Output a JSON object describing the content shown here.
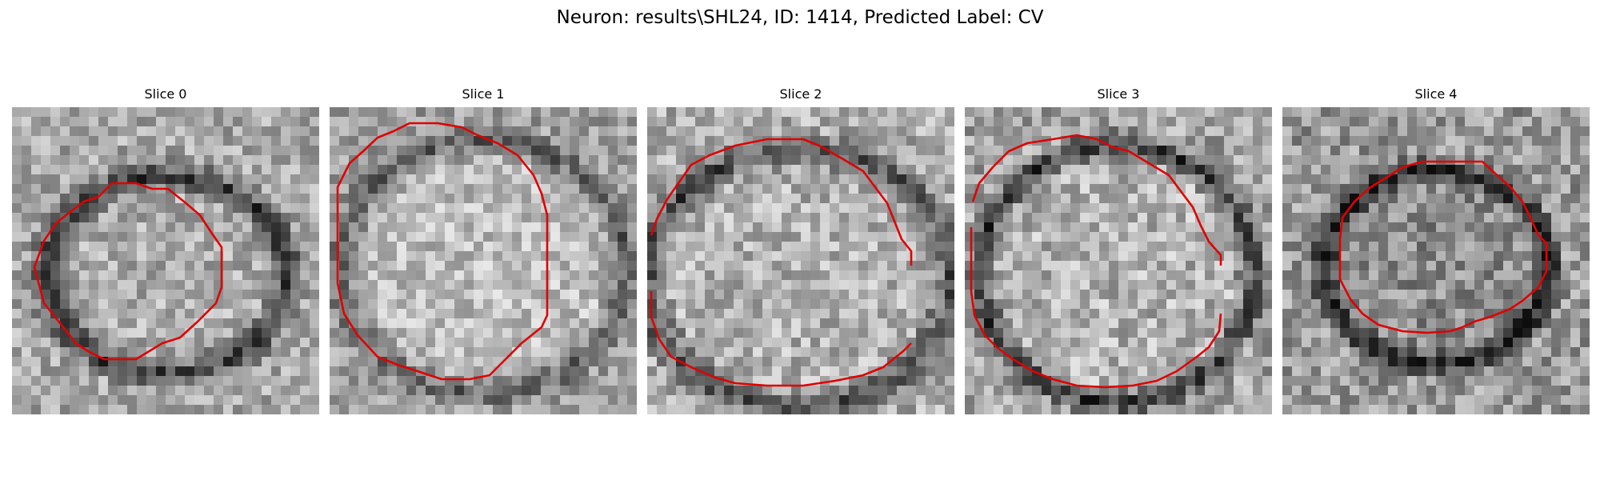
{
  "figure": {
    "title": "Neuron: results\\SHL24, ID: 1414, Predicted Label: CV"
  },
  "panels": [
    {
      "title": "Slice 0"
    },
    {
      "title": "Slice 1"
    },
    {
      "title": "Slice 2"
    },
    {
      "title": "Slice 3"
    },
    {
      "title": "Slice 4"
    }
  ],
  "colors": {
    "contour": "#e00000",
    "background": "#ffffff",
    "colormap": "grayscale"
  }
}
